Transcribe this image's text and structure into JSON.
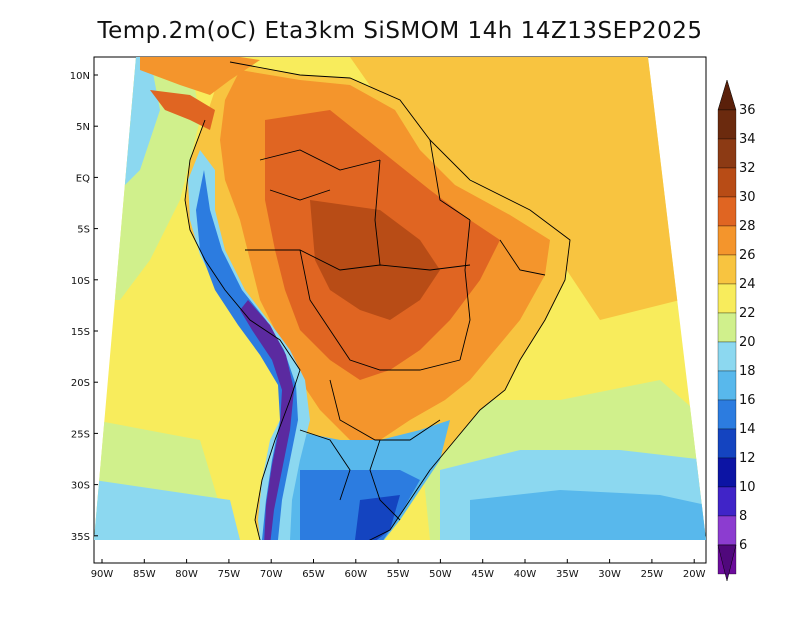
{
  "title": "Temp.2m(oC) Eta3km SiSMOM 14h 14Z13SEP2025",
  "map": {
    "lat_labels": [
      "10N",
      "5N",
      "EQ",
      "5S",
      "10S",
      "15S",
      "20S",
      "25S",
      "30S",
      "35S"
    ],
    "lon_labels": [
      "90W",
      "85W",
      "80W",
      "75W",
      "70W",
      "65W",
      "60W",
      "55W",
      "50W",
      "45W",
      "40W",
      "35W",
      "30W",
      "25W",
      "20W"
    ]
  },
  "colorbar": {
    "labels": [
      "36",
      "34",
      "32",
      "30",
      "28",
      "26",
      "24",
      "22",
      "20",
      "18",
      "16",
      "14",
      "12",
      "10",
      "8",
      "6"
    ],
    "colors": [
      "#6b2a0e",
      "#8c3a14",
      "#b84c16",
      "#e06522",
      "#f4952c",
      "#f8c440",
      "#f8ec5c",
      "#d0f08c",
      "#8cd8f0",
      "#58b8ec",
      "#2c7ce0",
      "#1444c0",
      "#0c14a4",
      "#4024c8",
      "#8c3cd0",
      "#6c0c9c"
    ],
    "top_arrow": "#5a200a",
    "bottom_arrow": "#50087c"
  },
  "colors": {
    "ocean_south": "#8ccdf0",
    "ocean_mid": "#f8ec5c",
    "ocean_warm": "#f8c440",
    "land_hot": "#e06522",
    "andes": "#5b2aa0",
    "south_cold": "#2c7ce0"
  }
}
